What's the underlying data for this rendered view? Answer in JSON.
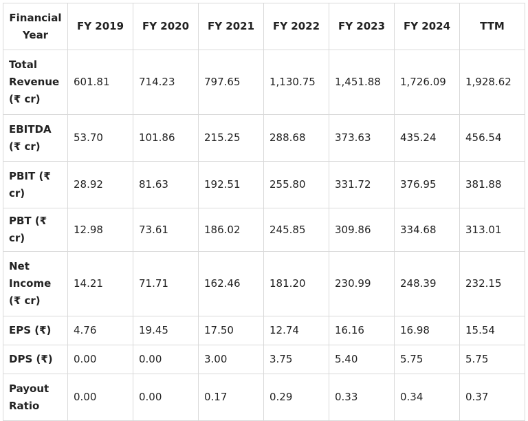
{
  "table": {
    "headers": [
      "Financial Year",
      "FY 2019",
      "FY 2020",
      "FY 2021",
      "FY 2022",
      "FY 2023",
      "FY 2024",
      "TTM"
    ],
    "rows": [
      {
        "label": "Total Revenue (₹ cr)",
        "values": [
          "601.81",
          "714.23",
          "797.65",
          "1,130.75",
          "1,451.88",
          "1,726.09",
          "1,928.62"
        ]
      },
      {
        "label": "EBITDA (₹ cr)",
        "values": [
          "53.70",
          "101.86",
          "215.25",
          "288.68",
          "373.63",
          "435.24",
          "456.54"
        ]
      },
      {
        "label": "PBIT (₹ cr)",
        "values": [
          "28.92",
          "81.63",
          "192.51",
          "255.80",
          "331.72",
          "376.95",
          "381.88"
        ]
      },
      {
        "label": "PBT (₹ cr)",
        "values": [
          "12.98",
          "73.61",
          "186.02",
          "245.85",
          "309.86",
          "334.68",
          "313.01"
        ]
      },
      {
        "label": "Net Income (₹ cr)",
        "values": [
          "14.21",
          "71.71",
          "162.46",
          "181.20",
          "230.99",
          "248.39",
          "232.15"
        ]
      },
      {
        "label": "EPS (₹)",
        "values": [
          "4.76",
          "19.45",
          "17.50",
          "12.74",
          "16.16",
          "16.98",
          "15.54"
        ]
      },
      {
        "label": "DPS (₹)",
        "values": [
          "0.00",
          "0.00",
          "3.00",
          "3.75",
          "5.40",
          "5.75",
          "5.75"
        ]
      },
      {
        "label": "Payout Ratio",
        "values": [
          "0.00",
          "0.00",
          "0.17",
          "0.29",
          "0.33",
          "0.34",
          "0.37"
        ]
      }
    ]
  }
}
